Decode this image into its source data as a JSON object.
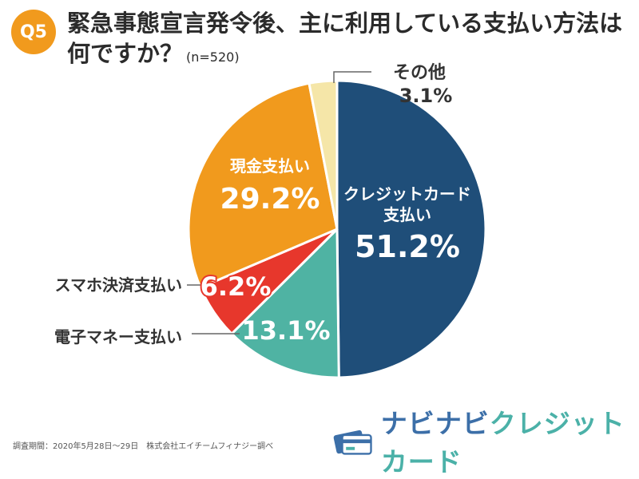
{
  "header": {
    "badge": "Q5",
    "title_line1": "緊急事態宣言発令後、主に利用している支払い方法は",
    "title_line2": "何ですか？",
    "sample": "(n=520)"
  },
  "chart_data": {
    "type": "pie",
    "slices": [
      {
        "label_lines": [
          "クレジットカード",
          "支払い"
        ],
        "value": 51.2,
        "value_label": "51.2%",
        "color": "#1f4e79"
      },
      {
        "label_lines": [
          "電子マネー支払い"
        ],
        "value": 13.1,
        "value_label": "13.1%",
        "color": "#4fb3a3"
      },
      {
        "label_lines": [
          "スマホ決済支払い"
        ],
        "value": 6.2,
        "value_label": "6.2%",
        "color": "#e7372c"
      },
      {
        "label_lines": [
          "現金支払い"
        ],
        "value": 29.2,
        "value_label": "29.2%",
        "color": "#f19a1d"
      },
      {
        "label_lines": [
          "その他"
        ],
        "value": 3.1,
        "value_label": "3.1%",
        "color": "#f5e6a8"
      }
    ]
  },
  "footer": {
    "note": "調査期間：2020年5月28日〜29日　株式会社エイチームフィナジー調べ"
  },
  "logo": {
    "part1": "ナビナビ",
    "part2": "クレジットカード"
  }
}
